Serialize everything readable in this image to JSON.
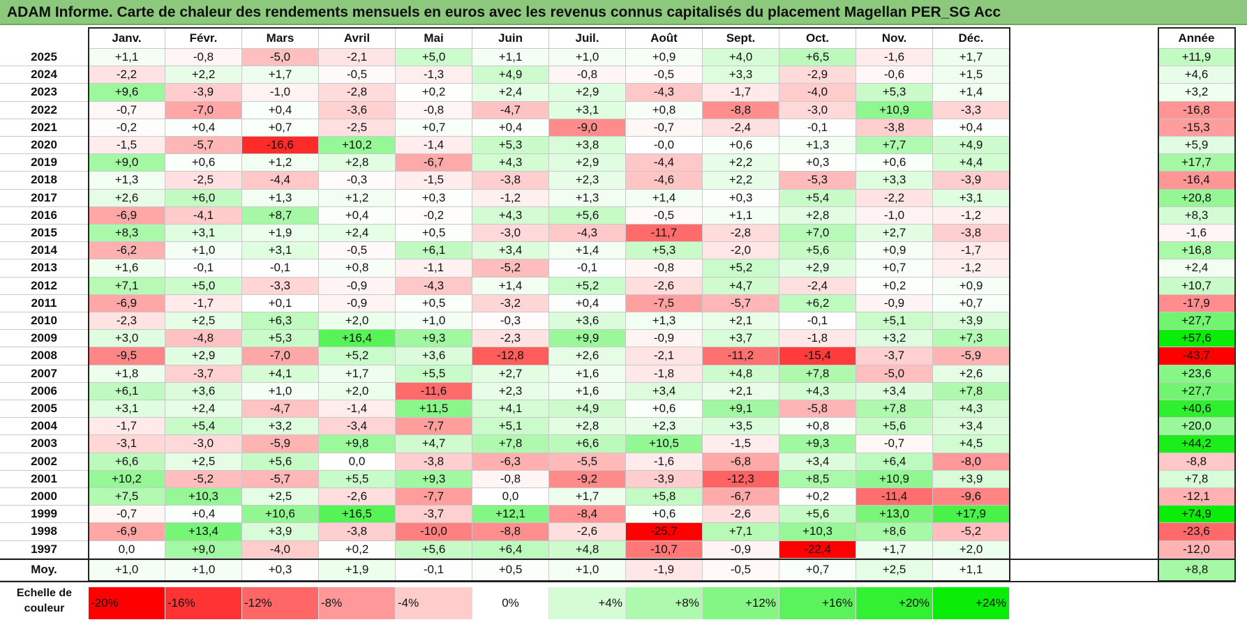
{
  "title": "ADAM Informe. Carte de chaleur des rendements mensuels en euros avec les revenus connus capitalisés du placement Magellan PER_SG Acc",
  "chart_data": {
    "type": "heatmap",
    "title": "ADAM Informe. Carte de chaleur des rendements mensuels en euros avec les revenus connus capitalisés du placement Magellan PER_SG Acc",
    "columns": [
      "Janv.",
      "Févr.",
      "Mars",
      "Avril",
      "Mai",
      "Juin",
      "Juil.",
      "Août",
      "Sept.",
      "Oct.",
      "Nov.",
      "Déc."
    ],
    "year_column": "Année",
    "rows": [
      {
        "year": "2025",
        "values": [
          "+1,1",
          "-0,8",
          "-5,0",
          "-2,1",
          "+5,0",
          "+1,1",
          "+1,0",
          "+0,9",
          "+4,0",
          "+6,5",
          "-1,6",
          "+1,7"
        ],
        "annual": "+11,9"
      },
      {
        "year": "2024",
        "values": [
          "-2,2",
          "+2,2",
          "+1,7",
          "-0,5",
          "-1,3",
          "+4,9",
          "-0,8",
          "-0,5",
          "+3,3",
          "-2,9",
          "-0,6",
          "+1,5"
        ],
        "annual": "+4,6"
      },
      {
        "year": "2023",
        "values": [
          "+9,6",
          "-3,9",
          "-1,0",
          "-2,8",
          "+0,2",
          "+2,4",
          "+2,9",
          "-4,3",
          "-1,7",
          "-4,0",
          "+5,3",
          "+1,4"
        ],
        "annual": "+3,2"
      },
      {
        "year": "2022",
        "values": [
          "-0,7",
          "-7,0",
          "+0,4",
          "-3,6",
          "-0,8",
          "-4,7",
          "+3,1",
          "+0,8",
          "-8,8",
          "-3,0",
          "+10,9",
          "-3,3"
        ],
        "annual": "-16,8"
      },
      {
        "year": "2021",
        "values": [
          "-0,2",
          "+0,4",
          "+0,7",
          "-2,5",
          "+0,7",
          "+0,4",
          "-9,0",
          "-0,7",
          "-2,4",
          "-0,1",
          "-3,8",
          "+0,4"
        ],
        "annual": "-15,3"
      },
      {
        "year": "2020",
        "values": [
          "-1,5",
          "-5,7",
          "-16,6",
          "+10,2",
          "-1,4",
          "+5,3",
          "+3,8",
          "-0,0",
          "+0,6",
          "+1,3",
          "+7,7",
          "+4,9"
        ],
        "annual": "+5,9"
      },
      {
        "year": "2019",
        "values": [
          "+9,0",
          "+0,6",
          "+1,2",
          "+2,8",
          "-6,7",
          "+4,3",
          "+2,9",
          "-4,4",
          "+2,2",
          "+0,3",
          "+0,6",
          "+4,4"
        ],
        "annual": "+17,7"
      },
      {
        "year": "2018",
        "values": [
          "+1,3",
          "-2,5",
          "-4,4",
          "-0,3",
          "-1,5",
          "-3,8",
          "+2,3",
          "-4,6",
          "+2,2",
          "-5,3",
          "+3,3",
          "-3,9"
        ],
        "annual": "-16,4"
      },
      {
        "year": "2017",
        "values": [
          "+2,6",
          "+6,0",
          "+1,3",
          "+1,2",
          "+0,3",
          "-1,2",
          "+1,3",
          "+1,4",
          "+0,3",
          "+5,4",
          "-2,2",
          "+3,1"
        ],
        "annual": "+20,8"
      },
      {
        "year": "2016",
        "values": [
          "-6,9",
          "-4,1",
          "+8,7",
          "+0,4",
          "-0,2",
          "+4,3",
          "+5,6",
          "-0,5",
          "+1,1",
          "+2,8",
          "-1,0",
          "-1,2"
        ],
        "annual": "+8,3"
      },
      {
        "year": "2015",
        "values": [
          "+8,3",
          "+3,1",
          "+1,9",
          "+2,4",
          "+0,5",
          "-3,0",
          "-4,3",
          "-11,7",
          "-2,8",
          "+7,0",
          "+2,7",
          "-3,8"
        ],
        "annual": "-1,6"
      },
      {
        "year": "2014",
        "values": [
          "-6,2",
          "+1,0",
          "+3,1",
          "-0,5",
          "+6,1",
          "+3,4",
          "+1,4",
          "+5,3",
          "-2,0",
          "+5,6",
          "+0,9",
          "-1,7"
        ],
        "annual": "+16,8"
      },
      {
        "year": "2013",
        "values": [
          "+1,6",
          "-0,1",
          "-0,1",
          "+0,8",
          "-1,1",
          "-5,2",
          "-0,1",
          "-0,8",
          "+5,2",
          "+2,9",
          "+0,7",
          "-1,2"
        ],
        "annual": "+2,4"
      },
      {
        "year": "2012",
        "values": [
          "+7,1",
          "+5,0",
          "-3,3",
          "-0,9",
          "-4,3",
          "+1,4",
          "+5,2",
          "-2,6",
          "+4,7",
          "-2,4",
          "+0,2",
          "+0,9"
        ],
        "annual": "+10,7"
      },
      {
        "year": "2011",
        "values": [
          "-6,9",
          "-1,7",
          "+0,1",
          "-0,9",
          "+0,5",
          "-3,2",
          "+0,4",
          "-7,5",
          "-5,7",
          "+6,2",
          "-0,9",
          "+0,7"
        ],
        "annual": "-17,9"
      },
      {
        "year": "2010",
        "values": [
          "-2,3",
          "+2,5",
          "+6,3",
          "+2,0",
          "+1,0",
          "-0,3",
          "+3,6",
          "+1,3",
          "+2,1",
          "-0,1",
          "+5,1",
          "+3,9"
        ],
        "annual": "+27,7"
      },
      {
        "year": "2009",
        "values": [
          "+3,0",
          "-4,8",
          "+5,3",
          "+16,4",
          "+9,3",
          "-2,3",
          "+9,9",
          "-0,9",
          "+3,7",
          "-1,8",
          "+3,2",
          "+7,3"
        ],
        "annual": "+57,6"
      },
      {
        "year": "2008",
        "values": [
          "-9,5",
          "+2,9",
          "-7,0",
          "+5,2",
          "+3,6",
          "-12,8",
          "+2,6",
          "-2,1",
          "-11,2",
          "-15,4",
          "-3,7",
          "-5,9"
        ],
        "annual": "-43,7"
      },
      {
        "year": "2007",
        "values": [
          "+1,8",
          "-3,7",
          "+4,1",
          "+1,7",
          "+5,5",
          "+2,7",
          "+1,6",
          "-1,8",
          "+4,8",
          "+7,8",
          "-5,0",
          "+2,6"
        ],
        "annual": "+23,6"
      },
      {
        "year": "2006",
        "values": [
          "+6,1",
          "+3,6",
          "+1,0",
          "+2,0",
          "-11,6",
          "+2,3",
          "+1,6",
          "+3,4",
          "+2,1",
          "+4,3",
          "+3,4",
          "+7,8"
        ],
        "annual": "+27,7"
      },
      {
        "year": "2005",
        "values": [
          "+3,1",
          "+2,4",
          "-4,7",
          "-1,4",
          "+11,5",
          "+4,1",
          "+4,9",
          "+0,6",
          "+9,1",
          "-5,8",
          "+7,8",
          "+4,3"
        ],
        "annual": "+40,6"
      },
      {
        "year": "2004",
        "values": [
          "-1,7",
          "+5,4",
          "+3,2",
          "-3,4",
          "-7,7",
          "+5,1",
          "+2,8",
          "+2,3",
          "+3,5",
          "+0,8",
          "+5,6",
          "+3,4"
        ],
        "annual": "+20,0"
      },
      {
        "year": "2003",
        "values": [
          "-3,1",
          "-3,0",
          "-5,9",
          "+9,8",
          "+4,7",
          "+7,8",
          "+6,6",
          "+10,5",
          "-1,5",
          "+9,3",
          "-0,7",
          "+4,5"
        ],
        "annual": "+44,2"
      },
      {
        "year": "2002",
        "values": [
          "+6,6",
          "+2,5",
          "+5,6",
          "0,0",
          "-3,8",
          "-6,3",
          "-5,5",
          "-1,6",
          "-6,8",
          "+3,4",
          "+6,4",
          "-8,0"
        ],
        "annual": "-8,8"
      },
      {
        "year": "2001",
        "values": [
          "+10,2",
          "-5,2",
          "-5,7",
          "+5,5",
          "+9,3",
          "-0,8",
          "-9,2",
          "-3,9",
          "-12,3",
          "+8,5",
          "+10,9",
          "+3,9"
        ],
        "annual": "+7,8"
      },
      {
        "year": "2000",
        "values": [
          "+7,5",
          "+10,3",
          "+2,5",
          "-2,6",
          "-7,7",
          "0,0",
          "+1,7",
          "+5,8",
          "-6,7",
          "+0,2",
          "-11,4",
          "-9,6"
        ],
        "annual": "-12,1"
      },
      {
        "year": "1999",
        "values": [
          "-0,7",
          "+0,4",
          "+10,6",
          "+16,5",
          "-3,7",
          "+12,1",
          "-8,4",
          "+0,6",
          "-2,6",
          "+5,6",
          "+13,0",
          "+17,9"
        ],
        "annual": "+74,9"
      },
      {
        "year": "1998",
        "values": [
          "-6,9",
          "+13,4",
          "+3,9",
          "-3,8",
          "-10,0",
          "-8,8",
          "-2,6",
          "-25,7",
          "+7,1",
          "+10,3",
          "+8,6",
          "-5,2"
        ],
        "annual": "-23,6"
      },
      {
        "year": "1997",
        "values": [
          "0,0",
          "+9,0",
          "-4,0",
          "+0,2",
          "+5,6",
          "+6,4",
          "+4,8",
          "-10,7",
          "-0,9",
          "-22,4",
          "+1,7",
          "+2,0"
        ],
        "annual": "-12,0"
      }
    ],
    "average": {
      "label": "Moy.",
      "values": [
        "+1,0",
        "+1,0",
        "+0,3",
        "+1,9",
        "-0,1",
        "+0,5",
        "+1,0",
        "-1,9",
        "-0,5",
        "+0,7",
        "+2,5",
        "+1,1"
      ],
      "annual": "+8,8"
    },
    "color_scale": {
      "label_line1": "Echelle de",
      "label_line2": "couleur",
      "stops": [
        {
          "label": "-20%",
          "value": -20,
          "color": "#ff0000"
        },
        {
          "label": "-16%",
          "value": -16,
          "color": "#ff3333"
        },
        {
          "label": "-12%",
          "value": -12,
          "color": "#ff6666"
        },
        {
          "label": "-8%",
          "value": -8,
          "color": "#ff9999"
        },
        {
          "label": "-4%",
          "value": -4,
          "color": "#ffcccc"
        },
        {
          "label": "0%",
          "value": 0,
          "color": "#ffffff"
        },
        {
          "label": "+4%",
          "value": 4,
          "color": "#d6fcd6"
        },
        {
          "label": "+8%",
          "value": 8,
          "color": "#adf9ad"
        },
        {
          "label": "+12%",
          "value": 12,
          "color": "#84f684"
        },
        {
          "label": "+16%",
          "value": 16,
          "color": "#5bf35b"
        },
        {
          "label": "+20%",
          "value": 20,
          "color": "#32f032"
        },
        {
          "label": "+24%",
          "value": 24,
          "color": "#09ed09"
        }
      ]
    }
  }
}
